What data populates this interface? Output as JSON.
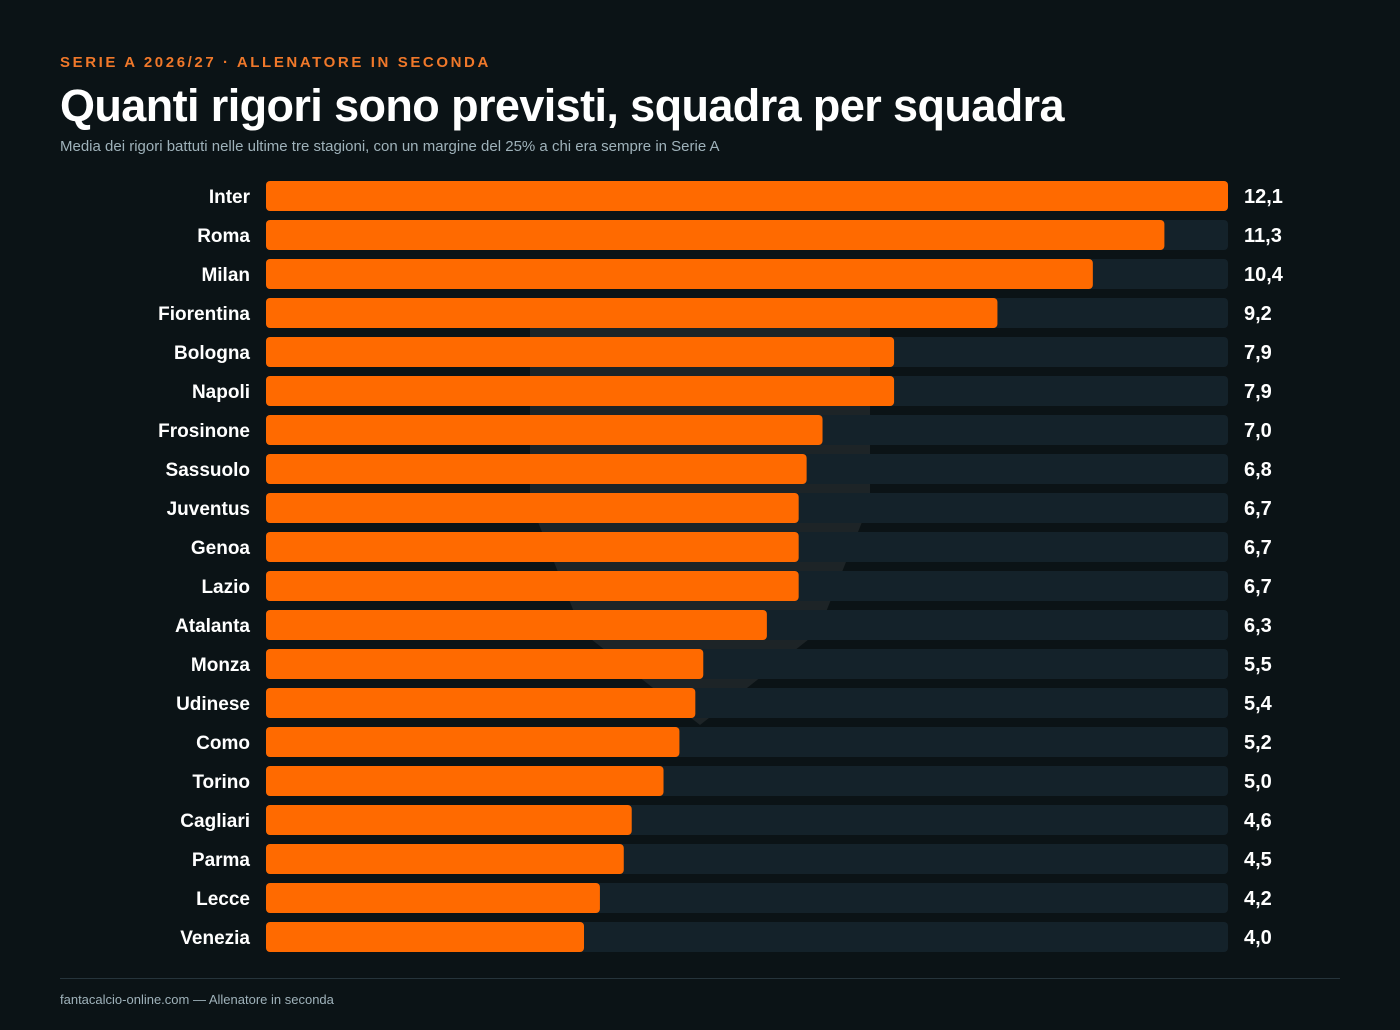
{
  "header": {
    "kicker": "SERIE A 2026/27 · ALLENATORE IN SECONDA",
    "title": "Quanti rigori sono previsti, squadra per squadra",
    "subtitle": "Media dei rigori battuti nelle ultime tre stagioni, con un margine del 25% a chi era sempre in Serie A"
  },
  "footer": {
    "text": "fantacalcio-online.com — Allenatore in seconda"
  },
  "colors": {
    "background": "#0b1316",
    "bar": "#ff6a00",
    "track": "#14222a",
    "accent": "#f0782a"
  },
  "chart_data": {
    "type": "bar",
    "orientation": "horizontal",
    "categories": [
      "Inter",
      "Roma",
      "Milan",
      "Fiorentina",
      "Bologna",
      "Napoli",
      "Frosinone",
      "Sassuolo",
      "Juventus",
      "Genoa",
      "Lazio",
      "Atalanta",
      "Monza",
      "Udinese",
      "Como",
      "Torino",
      "Cagliari",
      "Parma",
      "Lecce",
      "Venezia"
    ],
    "values": [
      12.1,
      11.3,
      10.4,
      9.2,
      7.9,
      7.9,
      7.0,
      6.8,
      6.7,
      6.7,
      6.7,
      6.3,
      5.5,
      5.4,
      5.2,
      5.0,
      4.6,
      4.5,
      4.2,
      4.0
    ],
    "value_labels": [
      "12,1",
      "11,3",
      "10,4",
      "9,2",
      "7,9",
      "7,9",
      "7,0",
      "6,8",
      "6,7",
      "6,7",
      "6,7",
      "6,3",
      "5,5",
      "5,4",
      "5,2",
      "5,0",
      "4,6",
      "4,5",
      "4,2",
      "4,0"
    ],
    "xlim": [
      0,
      12.1
    ],
    "grid": false,
    "legend": "none"
  }
}
